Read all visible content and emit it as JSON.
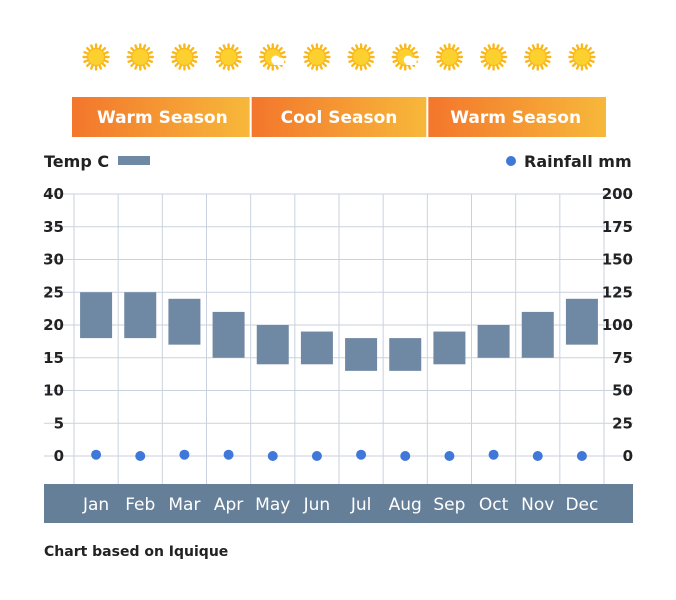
{
  "chart_data": {
    "type": "bar",
    "categories": [
      "Jan",
      "Feb",
      "Mar",
      "Apr",
      "May",
      "Jun",
      "Jul",
      "Aug",
      "Sep",
      "Oct",
      "Nov",
      "Dec"
    ],
    "series": [
      {
        "name": "Temp C",
        "type": "floating-bar",
        "axis": "left",
        "low": [
          18,
          18,
          17,
          15,
          14,
          14,
          13,
          13,
          14,
          15,
          15,
          17
        ],
        "high": [
          25,
          25,
          24,
          22,
          20,
          19,
          18,
          18,
          19,
          20,
          22,
          24
        ]
      },
      {
        "name": "Rainfall mm",
        "type": "scatter",
        "axis": "right",
        "values": [
          1,
          0,
          1,
          1,
          0,
          0,
          1,
          0,
          0,
          1,
          0,
          0
        ]
      }
    ],
    "y_left": {
      "min": 0,
      "max": 40,
      "ticks": [
        "0",
        "5",
        "10",
        "15",
        "20",
        "25",
        "30",
        "35",
        "40"
      ]
    },
    "y_right": {
      "min": 0,
      "max": 200,
      "ticks": [
        "0",
        "25",
        "50",
        "75",
        "100",
        "125",
        "150",
        "175",
        "200"
      ]
    },
    "grid": true,
    "legend": {
      "temp_label": "Temp C",
      "rain_label": "Rainfall mm",
      "placement": "top"
    },
    "seasons": [
      {
        "label": "Warm Season",
        "from": "Jan",
        "to": "Apr"
      },
      {
        "label": "Cool Season",
        "from": "May",
        "to": "Aug"
      },
      {
        "label": "Warm Season",
        "from": "Sep",
        "to": "Dec"
      }
    ],
    "weather_icons": [
      "sun-icon",
      "sun-icon",
      "sun-icon",
      "sun-icon",
      "partly-sunny-icon",
      "sun-icon",
      "sun-icon",
      "partly-sunny-icon",
      "sun-icon",
      "sun-icon",
      "sun-icon",
      "sun-icon"
    ],
    "footer": "Chart based on Iquique"
  },
  "colors": {
    "bar": "#6f88a3",
    "rain_dot": "#3f78d8",
    "grid": "#c9d2de",
    "month_band": "#657f99",
    "season_from": "#f3762c",
    "season_to": "#f7b83a",
    "sun": "#f9b81a",
    "sun_center": "#fcd02f"
  }
}
